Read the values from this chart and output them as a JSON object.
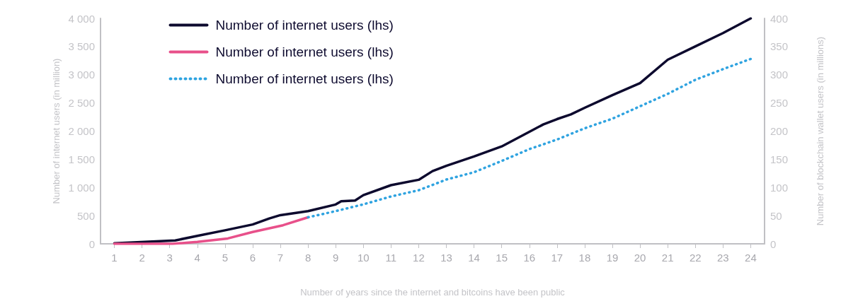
{
  "chart_data": {
    "type": "line",
    "xlabel": "Number of years since the internet and bitcoins have been public",
    "ylabel": "Number of internet users (in million)",
    "y2label": "Number of blockchain wallet users (in millions)",
    "xlim": [
      0.5,
      24.5
    ],
    "xticks": [
      1,
      2,
      3,
      4,
      5,
      6,
      7,
      8,
      9,
      10,
      11,
      12,
      13,
      14,
      15,
      16,
      17,
      18,
      19,
      20,
      21,
      22,
      23,
      24
    ],
    "ylim": [
      0,
      4000
    ],
    "yticks": [
      0,
      500,
      {
        "value": 1000,
        "label": "1 000"
      },
      {
        "value": 1500,
        "label": "1 500"
      },
      {
        "value": 2000,
        "label": "2 000"
      },
      {
        "value": 2500,
        "label": "2 500"
      },
      {
        "value": 3000,
        "label": "3 000"
      },
      {
        "value": 3500,
        "label": "3 500"
      },
      {
        "value": 4000,
        "label": "4 000"
      }
    ],
    "y2lim": [
      0,
      400
    ],
    "y2ticks": [
      0,
      50,
      100,
      150,
      200,
      250,
      300,
      350,
      400
    ],
    "grid": false,
    "legend": "top left",
    "marker": "none",
    "series": [
      {
        "name": "Number of internet users (lhs)",
        "color": "#0d0a2e",
        "line_style": "solid",
        "x": [
          1,
          3.2,
          4,
          5,
          6,
          6.6,
          7,
          8,
          9,
          9.2,
          9.7,
          10,
          11,
          12,
          12.5,
          13,
          14,
          15,
          16,
          16.5,
          17,
          17.5,
          18,
          19,
          20,
          21,
          22,
          23,
          24
        ],
        "values": [
          10,
          60,
          140,
          240,
          343,
          450,
          509,
          580,
          698,
          757,
          769,
          864,
          1041,
          1136,
          1290,
          1385,
          1550,
          1728,
          1988,
          2118,
          2213,
          2296,
          2414,
          2639,
          2852,
          3266,
          3503,
          3740,
          4000
        ]
      },
      {
        "name": "Number of internet users (lhs)",
        "color": "#e8508a",
        "line_style": "solid",
        "axis": "y2",
        "x": [
          1,
          3.1,
          4,
          5.1,
          6,
          7.1,
          8
        ],
        "values": [
          0,
          0,
          3.5,
          9.5,
          21,
          33,
          47
        ]
      },
      {
        "name": "Number of internet users (lhs)",
        "color": "#2fa3e0",
        "line_style": "dotted",
        "axis": "y2",
        "x": [
          8,
          9,
          10,
          11,
          12,
          13,
          14,
          15,
          16,
          17,
          18,
          19,
          20,
          21,
          22,
          23,
          24
        ],
        "values": [
          47,
          58,
          70,
          84,
          95,
          114,
          127,
          147,
          168,
          185,
          205,
          222,
          244,
          266,
          291,
          310,
          328
        ]
      }
    ]
  }
}
